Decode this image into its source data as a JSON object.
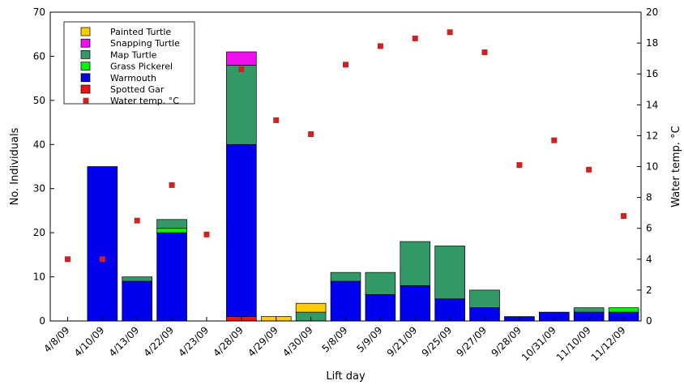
{
  "chart_data": {
    "type": "bar",
    "subtype": "stacked-bar-with-scatter-overlay",
    "xlabel": "Lift day",
    "ylabel": "No. Individuals",
    "ylabel_right": "Water temp. °C",
    "ylim": [
      0,
      70
    ],
    "ylim_right": [
      0,
      20
    ],
    "yticks": [
      "0",
      "10",
      "20",
      "30",
      "40",
      "50",
      "60",
      "70"
    ],
    "yticks_right": [
      "0",
      "2",
      "4",
      "6",
      "8",
      "10",
      "12",
      "14",
      "16",
      "18",
      "20"
    ],
    "grid": false,
    "legend_position": "top-left",
    "categories": [
      "4/8/09",
      "4/10/09",
      "4/13/09",
      "4/22/09",
      "4/23/09",
      "4/28/09",
      "4/29/09",
      "4/30/09",
      "5/8/09",
      "5/9/09",
      "9/21/09",
      "9/25/09",
      "9/27/09",
      "9/28/09",
      "10/31/09",
      "11/10/09",
      "11/12/09"
    ],
    "series": [
      {
        "name": "Spotted Gar",
        "color": "#ee1111",
        "values": [
          0,
          0,
          0,
          0,
          0,
          1,
          0,
          0,
          0,
          0,
          0,
          0,
          0,
          0,
          0,
          0,
          0
        ]
      },
      {
        "name": "Warmouth",
        "color": "#0000ee",
        "values": [
          0,
          35,
          9,
          20,
          0,
          39,
          0,
          0,
          9,
          6,
          8,
          5,
          3,
          1,
          2,
          2,
          2
        ]
      },
      {
        "name": "Grass Pickerel",
        "color": "#11ee11",
        "values": [
          0,
          0,
          0,
          1,
          0,
          0,
          0,
          0,
          0,
          0,
          0,
          0,
          0,
          0,
          0,
          0,
          1
        ]
      },
      {
        "name": "Map Turtle",
        "color": "#339966",
        "values": [
          0,
          0,
          1,
          2,
          0,
          18,
          0,
          2,
          2,
          5,
          10,
          12,
          4,
          0,
          0,
          1,
          0
        ]
      },
      {
        "name": "Snapping Turtle",
        "color": "#ee11ee",
        "values": [
          0,
          0,
          0,
          0,
          0,
          3,
          0,
          0,
          0,
          0,
          0,
          0,
          0,
          0,
          0,
          0,
          0
        ]
      },
      {
        "name": "Painted Turtle",
        "color": "#ffcc00",
        "values": [
          0,
          0,
          0,
          0,
          0,
          0,
          1,
          2,
          0,
          0,
          0,
          0,
          0,
          0,
          0,
          0,
          0
        ]
      }
    ],
    "scatter": {
      "name": "Water temp. °C",
      "color": "#cc2222",
      "axis": "right",
      "values": [
        4.0,
        4.0,
        6.5,
        8.8,
        5.6,
        16.3,
        13.0,
        12.1,
        16.6,
        17.8,
        18.3,
        18.7,
        17.4,
        10.1,
        11.7,
        9.8,
        6.8
      ]
    },
    "legend_order": [
      "Painted Turtle",
      "Snapping Turtle",
      "Map Turtle",
      "Grass Pickerel",
      "Warmouth",
      "Spotted Gar",
      "Water temp. °C"
    ]
  }
}
